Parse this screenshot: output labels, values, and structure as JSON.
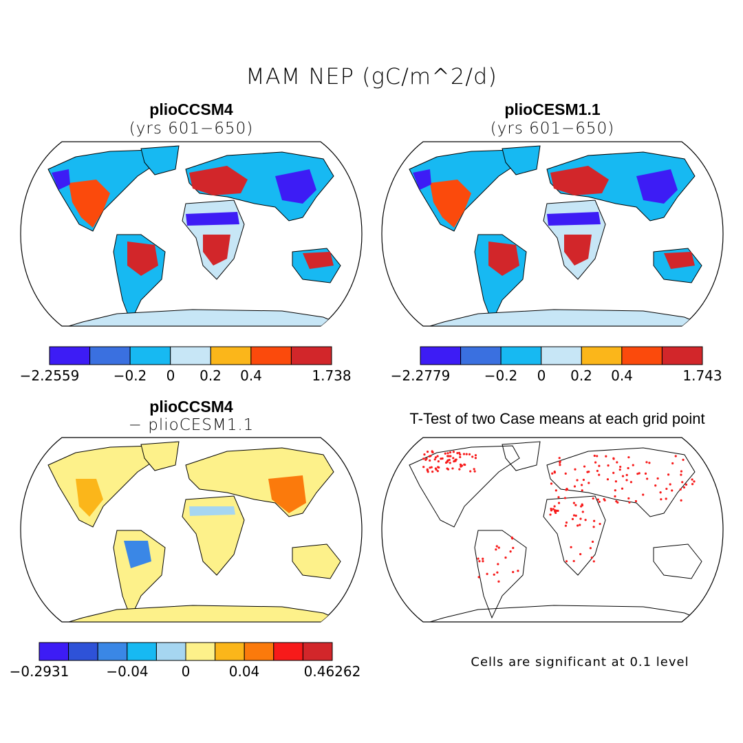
{
  "title": "MAM NEP (gC/m^2/d)",
  "panels": {
    "p1": {
      "title": "plioCCSM4",
      "subtitle": "(yrs 601−650)"
    },
    "p2": {
      "title": "plioCESM1.1",
      "subtitle": "(yrs 601−650)"
    },
    "p3": {
      "title": "plioCCSM4",
      "subtitle": "− plioCESM1.1"
    },
    "p4": {
      "title": "T-Test of two Case means at each grid point"
    }
  },
  "colorbars": {
    "cb1": {
      "colors": [
        "#3d1cf5",
        "#3a70e0",
        "#17b9f2",
        "#c7e6f6",
        "#fbb61a",
        "#fb4a0c",
        "#d2262a"
      ],
      "labels": [
        "−2.2559",
        "−0.2",
        "0",
        "0.2",
        "0.4",
        "1.738"
      ]
    },
    "cb2": {
      "colors": [
        "#3d1cf5",
        "#3a70e0",
        "#17b9f2",
        "#c7e6f6",
        "#fbb61a",
        "#fb4a0c",
        "#d2262a"
      ],
      "labels": [
        "−2.2779",
        "−0.2",
        "0",
        "0.2",
        "0.4",
        "1.743"
      ]
    },
    "cb3": {
      "colors": [
        "#3d1cf5",
        "#2e52d8",
        "#3a87e6",
        "#17b9f2",
        "#a6d6f1",
        "#fdf18a",
        "#fbb61a",
        "#fb7a0c",
        "#f71a1a",
        "#d2262a"
      ],
      "labels": [
        "−0.2931",
        "−0.04",
        "0",
        "0.04",
        "0.46262"
      ]
    }
  },
  "note": "Cells are significant at 0.1 level"
}
